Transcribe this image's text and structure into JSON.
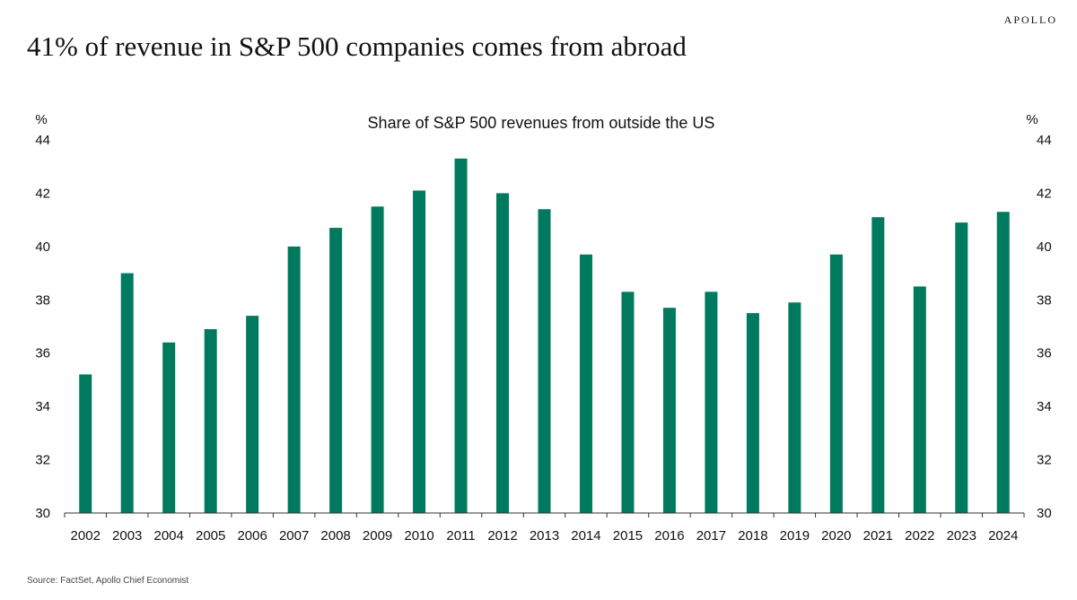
{
  "header": {
    "brand": "APOLLO",
    "headline": "41% of revenue in S&P 500 companies comes from abroad"
  },
  "footer": {
    "source": "Source: FactSet, Apollo Chief Economist"
  },
  "chart_data": {
    "type": "bar",
    "title": "Share of S&P 500 revenues from outside the US",
    "left_unit": "%",
    "right_unit": "%",
    "categories": [
      "2002",
      "2003",
      "2004",
      "2005",
      "2006",
      "2007",
      "2008",
      "2009",
      "2010",
      "2011",
      "2012",
      "2013",
      "2014",
      "2015",
      "2016",
      "2017",
      "2018",
      "2019",
      "2020",
      "2021",
      "2022",
      "2023",
      "2024"
    ],
    "values": [
      35.2,
      39.0,
      36.4,
      36.9,
      37.4,
      40.0,
      40.7,
      41.5,
      42.1,
      43.3,
      42.0,
      41.4,
      39.7,
      38.3,
      37.7,
      38.3,
      37.5,
      37.9,
      39.7,
      41.1,
      38.5,
      40.9,
      41.3
    ],
    "ylim": [
      30,
      44
    ],
    "yticks": [
      30,
      32,
      34,
      36,
      38,
      40,
      42,
      44
    ],
    "bar_color": "#007a5e",
    "grid": false,
    "secondary_y_axis": true
  }
}
